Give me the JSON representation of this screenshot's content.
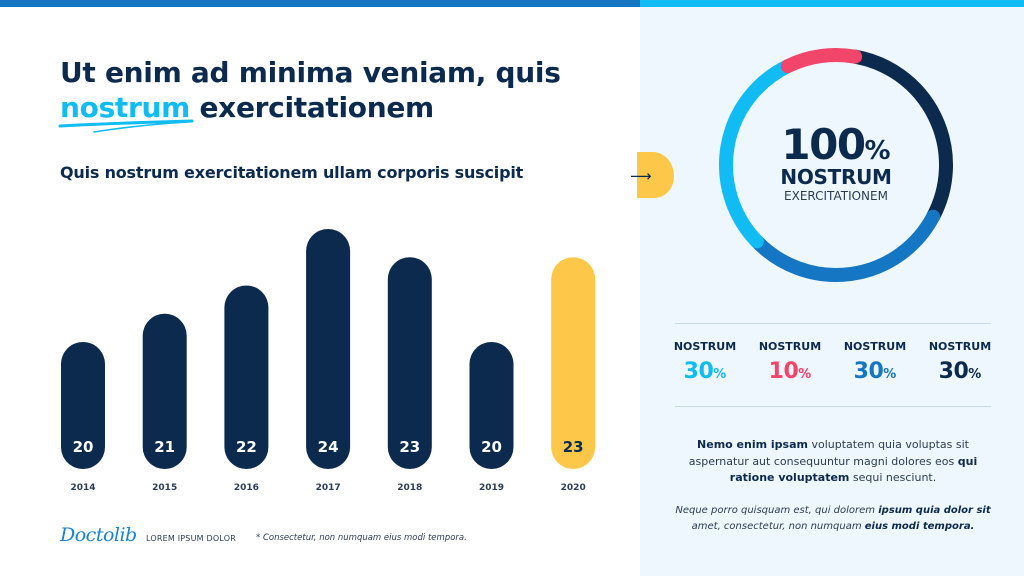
{
  "header": {
    "title_line1": "Ut enim ad minima veniam, quis",
    "title_highlight": "nostrum",
    "title_line2_rest": " exercitationem",
    "subtitle": "Quis nostrum exercitationem  ullam corporis suscipit"
  },
  "chart_data": {
    "type": "bar",
    "title": "Quis nostrum exercitationem  ullam corporis suscipit",
    "xlabel": "",
    "ylabel": "",
    "categories": [
      "2014",
      "2015",
      "2016",
      "2017",
      "2018",
      "2019",
      "2020"
    ],
    "values": [
      20,
      21,
      22,
      24,
      23,
      20,
      23
    ],
    "labels": [
      "20",
      "21",
      "22",
      "24",
      "23",
      "20",
      "23"
    ],
    "highlight_index": 6,
    "grid": false,
    "colors": {
      "default": "#0c2a4d",
      "highlight": "#fdc84a",
      "label_default": "#ffffff",
      "label_highlight": "#0c2a4d"
    }
  },
  "donut": {
    "big_value": "100",
    "big_unit": "%",
    "line2": "NOSTRUM",
    "line3": "EXERCITATIONEM",
    "segments": [
      {
        "name": "NOSTRUM",
        "value": 30,
        "color": "#0c2a4d"
      },
      {
        "name": "NOSTRUM",
        "value": 30,
        "color": "#1576c4"
      },
      {
        "name": "NOSTRUM",
        "value": 30,
        "color": "#10bcf3"
      },
      {
        "name": "NOSTRUM",
        "value": 10,
        "color": "#f2456a"
      }
    ]
  },
  "stats": [
    {
      "label": "NOSTRUM",
      "value": "30",
      "unit": "%",
      "color": "#10bcf3"
    },
    {
      "label": "NOSTRUM",
      "value": "10",
      "unit": "%",
      "color": "#f2456a"
    },
    {
      "label": "NOSTRUM",
      "value": "30",
      "unit": "%",
      "color": "#1576c4"
    },
    {
      "label": "NOSTRUM",
      "value": "30",
      "unit": "%",
      "color": "#0c2a4d"
    }
  ],
  "paragraph1": {
    "b1": "Nemo enim ipsam",
    "t1": " voluptatem quia voluptas sit aspernatur aut consequuntur magni dolores eos ",
    "b2": "qui ratione voluptatem",
    "t2": " sequi nesciunt."
  },
  "paragraph2": {
    "t1": "Neque porro quisquam est, qui dolorem ",
    "b1": "ipsum quia dolor sit",
    "t2": " amet, consectetur, non numquam ",
    "b2": "eius modi tempora."
  },
  "footer": {
    "logo": "Doctolib",
    "label": "LOREM IPSUM DOLOR",
    "note": "* Consectetur, non numquam eius modi tempora."
  }
}
